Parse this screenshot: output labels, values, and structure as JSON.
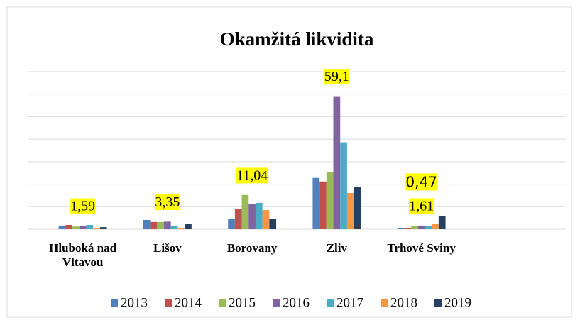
{
  "chart_data": {
    "type": "bar",
    "title": "Okamžitá likvidita",
    "categories": [
      "Hluboká nad Vltavou",
      "Lišov",
      "Borovany",
      "Zliv",
      "Trhové Sviny"
    ],
    "series": [
      {
        "name": "2013",
        "color": "#4f81bd",
        "values": [
          1.6,
          4.1,
          4.7,
          22.8,
          0.47
        ],
        "value_labels": [
          null,
          null,
          null,
          null,
          "0,47"
        ]
      },
      {
        "name": "2014",
        "color": "#c0504d",
        "values": [
          1.9,
          3.2,
          8.9,
          21.2,
          0.3
        ]
      },
      {
        "name": "2015",
        "color": "#9bbb59",
        "values": [
          1.2,
          3.2,
          15.2,
          25.3,
          1.5
        ]
      },
      {
        "name": "2016",
        "color": "#8064a2",
        "values": [
          1.59,
          3.35,
          11.04,
          59.1,
          1.61
        ],
        "value_labels": [
          "1,59",
          "3,35",
          "11,04",
          "59,1",
          "1,61"
        ]
      },
      {
        "name": "2017",
        "color": "#4bacc6",
        "values": [
          1.9,
          1.5,
          11.7,
          38.6,
          1.3
        ]
      },
      {
        "name": "2018",
        "color": "#f79646",
        "values": [
          0.3,
          0.3,
          8.5,
          16.1,
          2.2
        ]
      },
      {
        "name": "2019",
        "color": "#254061",
        "values": [
          0.9,
          2.5,
          4.7,
          18.7,
          5.7
        ]
      }
    ],
    "ylim": [
      0,
      70
    ],
    "yticks": [
      0,
      10,
      20,
      30,
      40,
      50,
      60,
      70
    ],
    "grid": true,
    "legend": "bottom"
  }
}
